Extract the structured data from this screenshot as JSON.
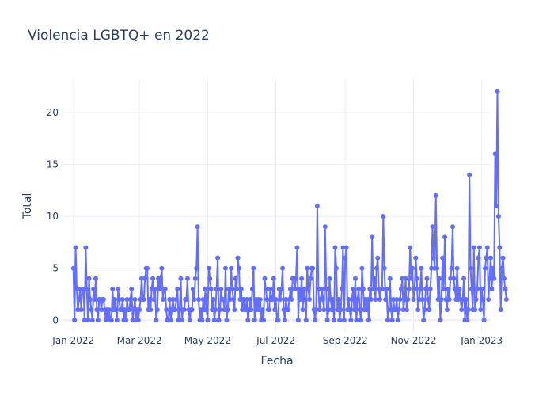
{
  "chart_data": {
    "type": "line",
    "mode": "lines+markers",
    "title": "Violencia LGBTQ+ en 2022",
    "xlabel": "Fecha",
    "ylabel": "Total",
    "color": "#636efa",
    "grid": true,
    "background": "#ffffff",
    "gridcolor": "#ebf0f8",
    "textcolor": "#2a3f5f",
    "xlim": [
      "2021-12-23",
      "2023-01-09"
    ],
    "ylim": [
      -1.2,
      23.2
    ],
    "x_ticks": [
      {
        "date": "2022-01-01",
        "label": "Jan 2022"
      },
      {
        "date": "2022-03-01",
        "label": "Mar 2022"
      },
      {
        "date": "2022-05-01",
        "label": "May 2022"
      },
      {
        "date": "2022-07-01",
        "label": "Jul 2022"
      },
      {
        "date": "2022-09-01",
        "label": "Sep 2022"
      },
      {
        "date": "2022-11-01",
        "label": "Nov 2022"
      },
      {
        "date": "2023-01-01",
        "label": "Jan 2023"
      }
    ],
    "y_ticks": [
      0,
      5,
      10,
      15,
      20
    ],
    "series": [
      {
        "x_start": "2022-01-01",
        "x_step_days": 1,
        "y": [
          5,
          0,
          7,
          3,
          1,
          2,
          3,
          1,
          3,
          3,
          0,
          7,
          3,
          0,
          4,
          2,
          1,
          0,
          3,
          2,
          4,
          1,
          0,
          2,
          2,
          1,
          2,
          2,
          1,
          0,
          1,
          0,
          1,
          0,
          0,
          3,
          1,
          2,
          1,
          0,
          3,
          2,
          1,
          1,
          2,
          0,
          1,
          0,
          2,
          1,
          1,
          2,
          3,
          0,
          1,
          2,
          0,
          1,
          0,
          1,
          2,
          4,
          2,
          2,
          4,
          5,
          5,
          1,
          2,
          1,
          3,
          4,
          2,
          3,
          0,
          1,
          4,
          3,
          4,
          5,
          2,
          3,
          3,
          1,
          0,
          0,
          2,
          0,
          1,
          2,
          1,
          1,
          2,
          3,
          0,
          1,
          4,
          0,
          1,
          1,
          2,
          2,
          4,
          1,
          0,
          1,
          1,
          3,
          2,
          4,
          5,
          9,
          2,
          0,
          1,
          0,
          2,
          1,
          3,
          1,
          0,
          5,
          4,
          3,
          1,
          2,
          0,
          1,
          3,
          6,
          0,
          1,
          3,
          2,
          2,
          1,
          5,
          0,
          1,
          3,
          2,
          5,
          3,
          2,
          1,
          4,
          3,
          6,
          5,
          2,
          3,
          1,
          2,
          1,
          1,
          2,
          0,
          1,
          2,
          1,
          3,
          5,
          0,
          2,
          1,
          2,
          1,
          2,
          0,
          1,
          0,
          4,
          3,
          2,
          1,
          1,
          3,
          2,
          2,
          4,
          1,
          2,
          0,
          0,
          3,
          2,
          3,
          5,
          1,
          0,
          2,
          1,
          1,
          2,
          3,
          2,
          4,
          4,
          3,
          4,
          7,
          0,
          3,
          2,
          4,
          1,
          3,
          2,
          0,
          5,
          3,
          2,
          4,
          5,
          5,
          1,
          0,
          1,
          11,
          3,
          1,
          2,
          3,
          2,
          1,
          9,
          3,
          0,
          1,
          4,
          2,
          1,
          2,
          0,
          7,
          5,
          1,
          2,
          0,
          1,
          3,
          7,
          0,
          6,
          7,
          1,
          2,
          1,
          0,
          2,
          3,
          1,
          4,
          0,
          2,
          3,
          1,
          0,
          5,
          3,
          1,
          2,
          1,
          2,
          0,
          3,
          2,
          8,
          3,
          4,
          2,
          5,
          6,
          3,
          2,
          3,
          3,
          10,
          5,
          2,
          3,
          0,
          1,
          4,
          1,
          0,
          2,
          1,
          1,
          2,
          0,
          1,
          2,
          3,
          4,
          1,
          2,
          4,
          1,
          2,
          3,
          7,
          4,
          5,
          2,
          3,
          6,
          4,
          1,
          2,
          3,
          5,
          2,
          0,
          1,
          3,
          4,
          2,
          1,
          3,
          5,
          9,
          6,
          5,
          12,
          5,
          2,
          4,
          0,
          2,
          6,
          3,
          8,
          2,
          1,
          3,
          2,
          4,
          5,
          9,
          4,
          3,
          2,
          5,
          2,
          3,
          2,
          1,
          2,
          4,
          0,
          2,
          0,
          1,
          14,
          5,
          3,
          1,
          7,
          1,
          2,
          3,
          6,
          7,
          1,
          3,
          2,
          0,
          5,
          6,
          7,
          2,
          4,
          6,
          3,
          5,
          4,
          16,
          11,
          22,
          10,
          7,
          1,
          5,
          6,
          4,
          3,
          2
        ]
      }
    ]
  }
}
